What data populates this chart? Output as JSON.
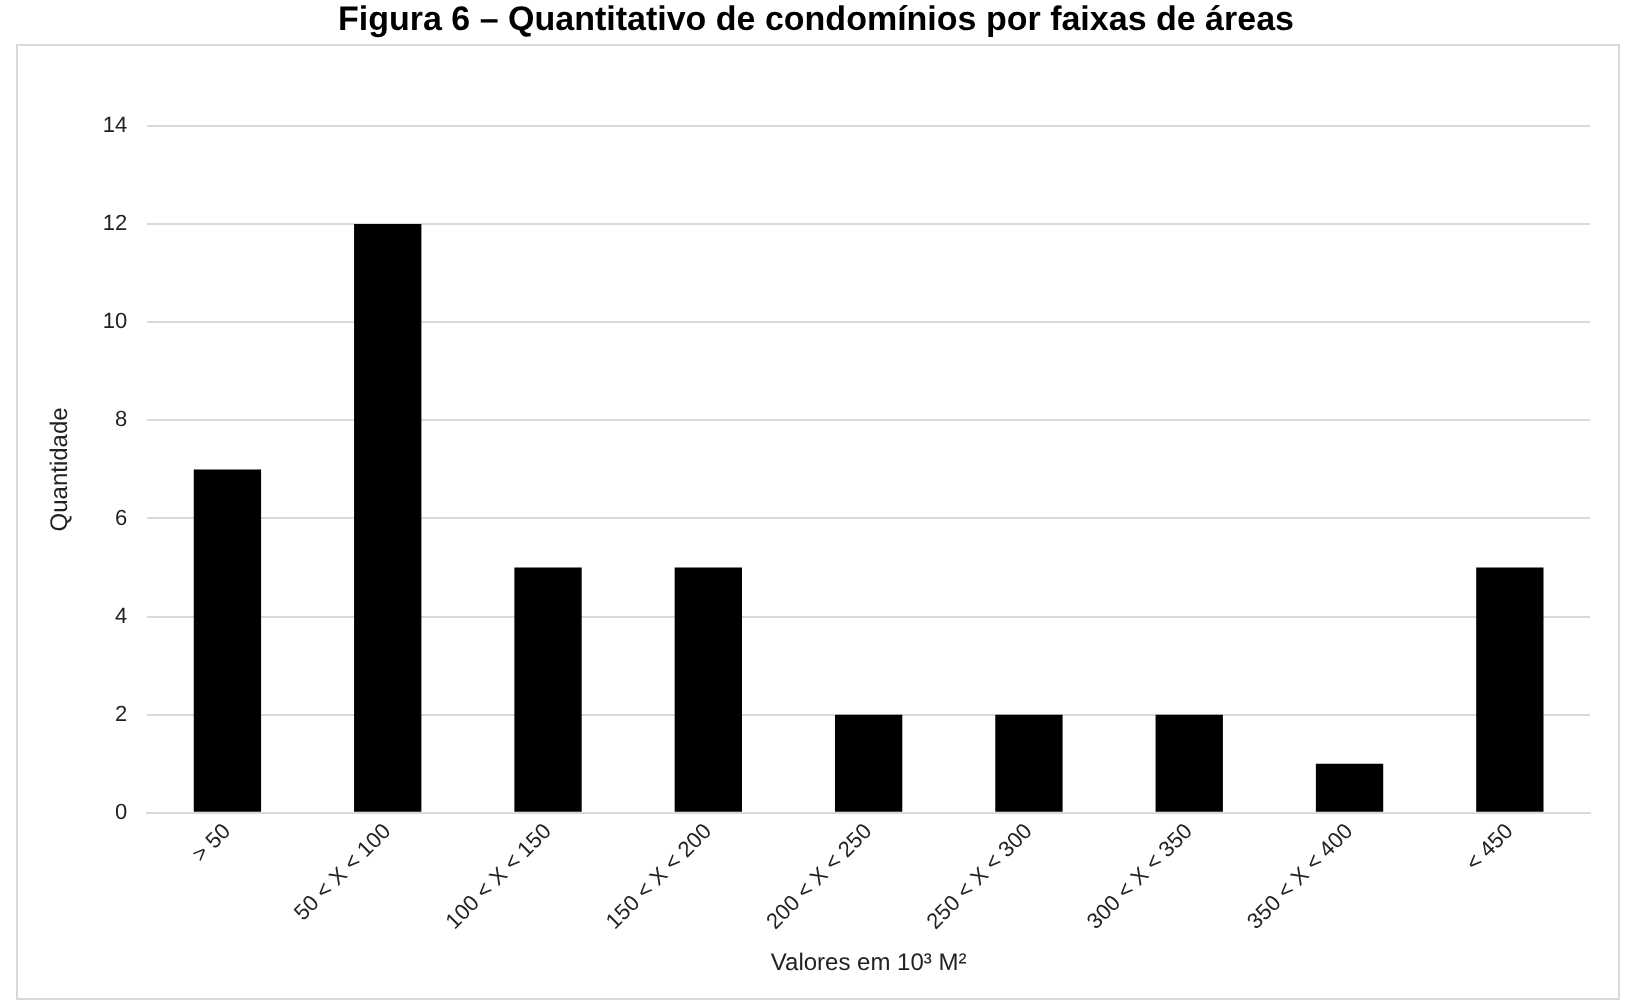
{
  "chart_data": {
    "type": "bar",
    "title": "Figura 6 – Quantitativo de condomínios por faixas de áreas",
    "xlabel": "Valores em 10³ M²",
    "ylabel": "Quantidade",
    "categories": [
      "> 50",
      "50 < X < 100",
      "100 < X < 150",
      "150 < X < 200",
      "200 < X < 250",
      "250 < X < 300",
      "300 < X < 350",
      "350 < X < 400",
      "< 450"
    ],
    "values": [
      7,
      12,
      5,
      5,
      2,
      2,
      2,
      1,
      5
    ],
    "color": "#000000",
    "ylim": [
      0,
      14
    ],
    "yticks": [
      0,
      2,
      4,
      6,
      8,
      10,
      12,
      14
    ],
    "grid": "y",
    "legend": false
  }
}
